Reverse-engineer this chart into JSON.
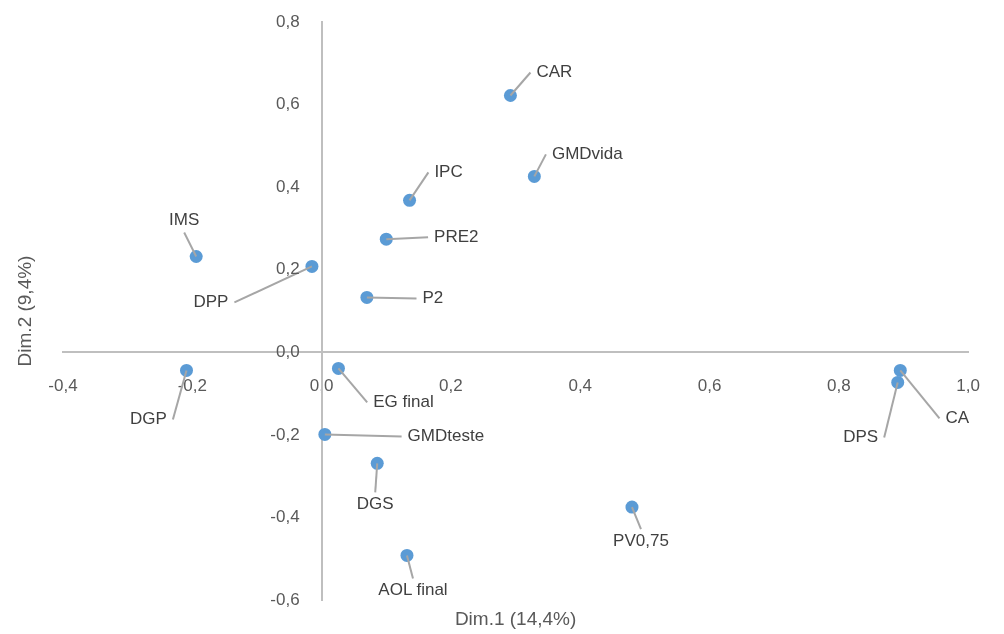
{
  "chart_data": {
    "type": "scatter",
    "xlabel": "Dim.1 (14,4%)",
    "ylabel": "Dim.2 (9,4%)",
    "x": [
      0.292,
      0.329,
      0.136,
      0.1,
      -0.194,
      -0.015,
      0.07,
      -0.209,
      0.026,
      0.005,
      0.086,
      0.132,
      0.48,
      0.895,
      0.891
    ],
    "series": [
      {
        "color": "#5b9bd5",
        "values": [
          0.622,
          0.426,
          0.368,
          0.274,
          0.232,
          0.208,
          0.133,
          -0.044,
          -0.039,
          -0.199,
          -0.269,
          -0.492,
          -0.375,
          -0.044,
          -0.073
        ]
      }
    ],
    "marker": "circle",
    "grid": false,
    "legend": false,
    "xlim": [
      -0.4,
      1.0
    ],
    "ylim": [
      -0.6,
      0.8
    ],
    "xticks": [
      {
        "value": -0.4,
        "label": "-0,4"
      },
      {
        "value": -0.2,
        "label": "-0,2"
      },
      {
        "value": 0,
        "label": "0,0"
      },
      {
        "value": 0.2,
        "label": "0,2"
      },
      {
        "value": 0.4,
        "label": "0,4"
      },
      {
        "value": 0.6,
        "label": "0,6"
      },
      {
        "value": 0.8,
        "label": "0,8"
      },
      {
        "value": 1.0,
        "label": "1,0"
      }
    ],
    "yticks": [
      {
        "value": -0.6,
        "label": "-0,6"
      },
      {
        "value": -0.4,
        "label": "-0,4"
      },
      {
        "value": -0.2,
        "label": "-0,2"
      },
      {
        "value": 0,
        "label": "0,0"
      },
      {
        "value": 0.2,
        "label": "0,2"
      },
      {
        "value": 0.4,
        "label": "0,4"
      },
      {
        "value": 0.6,
        "label": "0,6"
      },
      {
        "value": 0.8,
        "label": "0,8"
      }
    ],
    "annotations": [
      {
        "text": "CAR",
        "x": 0.292,
        "y": 0.622
      },
      {
        "text": "GMDvida",
        "x": 0.329,
        "y": 0.426
      },
      {
        "text": "IPC",
        "x": 0.136,
        "y": 0.368
      },
      {
        "text": "PRE2",
        "x": 0.1,
        "y": 0.274
      },
      {
        "text": "IMS",
        "x": -0.194,
        "y": 0.232
      },
      {
        "text": "DPP",
        "x": -0.015,
        "y": 0.208
      },
      {
        "text": "P2",
        "x": 0.07,
        "y": 0.133
      },
      {
        "text": "DGP",
        "x": -0.209,
        "y": -0.044
      },
      {
        "text": "EG final",
        "x": 0.026,
        "y": -0.039
      },
      {
        "text": "GMDteste",
        "x": 0.005,
        "y": -0.199
      },
      {
        "text": "DGS",
        "x": 0.086,
        "y": -0.269
      },
      {
        "text": "AOL final",
        "x": 0.132,
        "y": -0.492
      },
      {
        "text": "PV0,75",
        "x": 0.48,
        "y": -0.375
      },
      {
        "text": "CA",
        "x": 0.895,
        "y": -0.044
      },
      {
        "text": "DPS",
        "x": 0.891,
        "y": -0.073
      }
    ]
  }
}
